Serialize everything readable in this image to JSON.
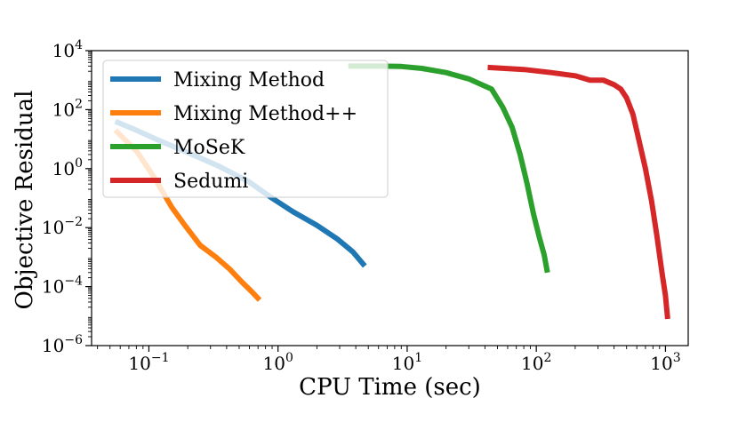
{
  "chart_data": {
    "type": "line",
    "title": "",
    "xlabel": "CPU Time (sec)",
    "ylabel": "Objective Residual",
    "xscale": "log",
    "yscale": "log",
    "xlim": [
      0.036,
      1500
    ],
    "ylim": [
      1e-06,
      10000
    ],
    "xticks": [
      {
        "value": 0.1,
        "base": "10",
        "exp": "−1"
      },
      {
        "value": 1,
        "base": "10",
        "exp": "0"
      },
      {
        "value": 10,
        "base": "10",
        "exp": "1"
      },
      {
        "value": 100,
        "base": "10",
        "exp": "2"
      },
      {
        "value": 1000,
        "base": "10",
        "exp": "3"
      }
    ],
    "yticks": [
      {
        "value": 1e-06,
        "base": "10",
        "exp": "−6"
      },
      {
        "value": 0.0001,
        "base": "10",
        "exp": "−4"
      },
      {
        "value": 0.01,
        "base": "10",
        "exp": "−2"
      },
      {
        "value": 1,
        "base": "10",
        "exp": "0"
      },
      {
        "value": 100,
        "base": "10",
        "exp": "2"
      },
      {
        "value": 10000,
        "base": "10",
        "exp": "4"
      }
    ],
    "legend_position": "top-left",
    "series": [
      {
        "name": "Mixing Method",
        "color": "#1f77b4",
        "points": [
          [
            0.055,
            40
          ],
          [
            0.08,
            20
          ],
          [
            0.12,
            9
          ],
          [
            0.2,
            3.5
          ],
          [
            0.35,
            1.2
          ],
          [
            0.6,
            0.35
          ],
          [
            0.9,
            0.1
          ],
          [
            1.3,
            0.035
          ],
          [
            2.0,
            0.012
          ],
          [
            2.9,
            0.004
          ],
          [
            3.8,
            0.0015
          ],
          [
            4.7,
            0.0005
          ]
        ]
      },
      {
        "name": "Mixing Method++",
        "color": "#ff7f0e",
        "points": [
          [
            0.055,
            20
          ],
          [
            0.08,
            4
          ],
          [
            0.11,
            0.5
          ],
          [
            0.15,
            0.05
          ],
          [
            0.19,
            0.012
          ],
          [
            0.25,
            0.0025
          ],
          [
            0.33,
            0.001
          ],
          [
            0.42,
            0.0004
          ],
          [
            0.52,
            0.00015
          ],
          [
            0.62,
            7e-05
          ],
          [
            0.72,
            3.5e-05
          ]
        ]
      },
      {
        "name": "MoSeK",
        "color": "#2ca02c",
        "points": [
          [
            3.5,
            3000
          ],
          [
            6,
            3000
          ],
          [
            9,
            2900
          ],
          [
            13,
            2500
          ],
          [
            20,
            1800
          ],
          [
            30,
            1100
          ],
          [
            45,
            500
          ],
          [
            55,
            120
          ],
          [
            65,
            25
          ],
          [
            75,
            3
          ],
          [
            85,
            0.3
          ],
          [
            95,
            0.03
          ],
          [
            105,
            0.005
          ],
          [
            115,
            0.0012
          ],
          [
            122,
            0.0003
          ]
        ]
      },
      {
        "name": "Sedumi",
        "color": "#d62728",
        "points": [
          [
            42,
            2700
          ],
          [
            80,
            2300
          ],
          [
            130,
            1800
          ],
          [
            200,
            1400
          ],
          [
            260,
            1000
          ],
          [
            330,
            1000
          ],
          [
            400,
            700
          ],
          [
            450,
            500
          ],
          [
            500,
            250
          ],
          [
            560,
            70
          ],
          [
            620,
            10
          ],
          [
            700,
            1
          ],
          [
            780,
            0.08
          ],
          [
            860,
            0.005
          ],
          [
            940,
            0.0003
          ],
          [
            1000,
            5e-05
          ],
          [
            1040,
            8e-06
          ]
        ]
      }
    ]
  }
}
